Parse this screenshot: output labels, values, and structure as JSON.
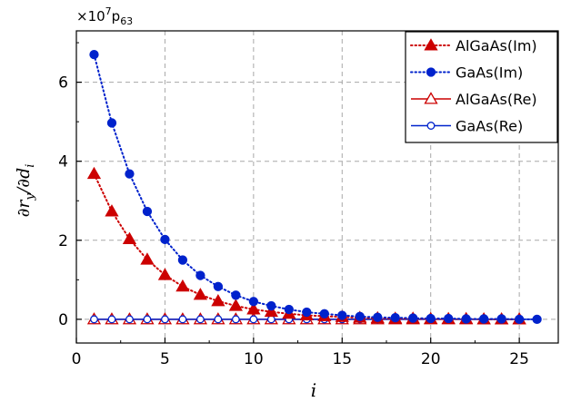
{
  "chart_data": {
    "type": "line",
    "multiplier_text": "×10",
    "multiplier_exp": "7",
    "multiplier_suffix": "p",
    "multiplier_sub": "63",
    "xlabel": "i",
    "ylabel_html": "∂r_y/∂d_i",
    "xlim": [
      0,
      27.2
    ],
    "ylim": [
      -0.6,
      7.3
    ],
    "xticks": [
      0,
      5,
      10,
      15,
      20,
      25
    ],
    "yticks": [
      0,
      2,
      4,
      6
    ],
    "grid": true,
    "legend_position": "top-right",
    "series": [
      {
        "name": "AlGaAs(Im)",
        "color": "#cc0000",
        "marker": "triangle-filled",
        "line": "dotted",
        "x": [
          1,
          2,
          3,
          4,
          5,
          6,
          7,
          8,
          9,
          10,
          11,
          12,
          13,
          14,
          15,
          16,
          17,
          18,
          19,
          20,
          21,
          22,
          23,
          24,
          25
        ],
        "values": [
          3.68,
          2.73,
          2.03,
          1.51,
          1.12,
          0.83,
          0.62,
          0.46,
          0.34,
          0.25,
          0.19,
          0.14,
          0.1,
          0.08,
          0.06,
          0.04,
          0.03,
          0.02,
          0.02,
          0.01,
          0.01,
          0.01,
          0.0,
          0.0,
          0.0
        ]
      },
      {
        "name": "GaAs(Im)",
        "color": "#0022cc",
        "marker": "circle-filled",
        "line": "dotted",
        "x": [
          1,
          2,
          3,
          4,
          5,
          6,
          7,
          8,
          9,
          10,
          11,
          12,
          13,
          14,
          15,
          16,
          17,
          18,
          19,
          20,
          21,
          22,
          23,
          24,
          25,
          26
        ],
        "values": [
          6.7,
          4.97,
          3.68,
          2.73,
          2.02,
          1.5,
          1.11,
          0.83,
          0.61,
          0.45,
          0.34,
          0.25,
          0.18,
          0.14,
          0.1,
          0.07,
          0.05,
          0.04,
          0.03,
          0.02,
          0.02,
          0.01,
          0.01,
          0.01,
          0.0,
          0.0
        ]
      },
      {
        "name": "AlGaAs(Re)",
        "color": "#cc0000",
        "marker": "triangle-open",
        "line": "solid",
        "x": [
          1,
          2,
          3,
          4,
          5,
          6,
          7,
          8,
          9,
          10,
          11,
          12,
          13,
          14,
          15,
          16,
          17,
          18,
          19,
          20,
          21,
          22,
          23,
          24,
          25
        ],
        "values": [
          0,
          0,
          0,
          0,
          0,
          0,
          0,
          0,
          0,
          0,
          0,
          0,
          0,
          0,
          0,
          0,
          0,
          0,
          0,
          0,
          0,
          0,
          0,
          0,
          0
        ]
      },
      {
        "name": "GaAs(Re)",
        "color": "#0022cc",
        "marker": "circle-open",
        "line": "solid",
        "x": [
          1,
          2,
          3,
          4,
          5,
          6,
          7,
          8,
          9,
          10,
          11,
          12,
          13,
          14,
          15,
          16,
          17,
          18,
          19,
          20,
          21,
          22,
          23,
          24,
          25,
          26
        ],
        "values": [
          0,
          0,
          0,
          0,
          0,
          0,
          0,
          0,
          0,
          0,
          0,
          0,
          0,
          0,
          0,
          0,
          0,
          0,
          0,
          0,
          0,
          0,
          0,
          0,
          0,
          0
        ]
      }
    ]
  }
}
